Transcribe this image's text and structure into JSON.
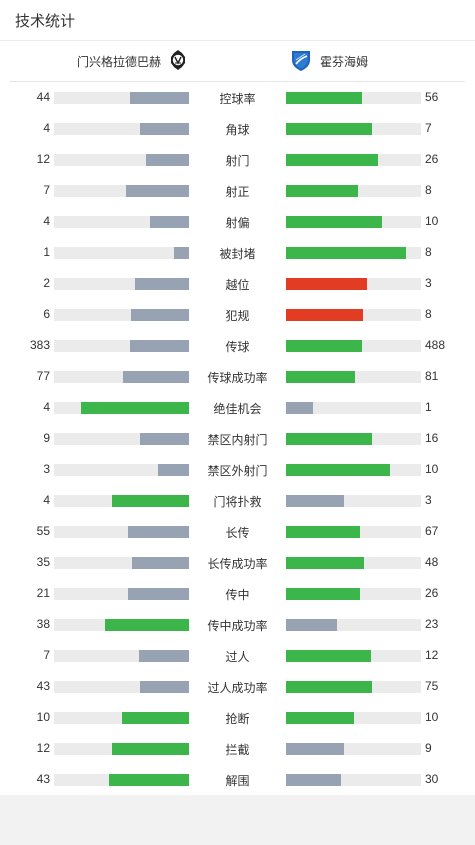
{
  "header": {
    "title": "技术统计"
  },
  "teams": {
    "home": {
      "name": "门兴格拉德巴赫",
      "logo_icon": "gladbach-crest-icon"
    },
    "away": {
      "name": "霍芬海姆",
      "logo_icon": "hoffenheim-crest-icon"
    }
  },
  "colors": {
    "leader": "#3cb54a",
    "trailer": "#97a3b3",
    "highlight": "#e23c22",
    "track": "#ebebeb"
  },
  "stats": [
    {
      "label": "控球率",
      "home": "44",
      "away": "56",
      "home_pct": 0.44,
      "away_pct": 0.56,
      "home_color": "trailer",
      "away_color": "leader"
    },
    {
      "label": "角球",
      "home": "4",
      "away": "7",
      "home_pct": 0.36,
      "away_pct": 0.64,
      "home_color": "trailer",
      "away_color": "leader"
    },
    {
      "label": "射门",
      "home": "12",
      "away": "26",
      "home_pct": 0.32,
      "away_pct": 0.68,
      "home_color": "trailer",
      "away_color": "leader"
    },
    {
      "label": "射正",
      "home": "7",
      "away": "8",
      "home_pct": 0.47,
      "away_pct": 0.53,
      "home_color": "trailer",
      "away_color": "leader"
    },
    {
      "label": "射偏",
      "home": "4",
      "away": "10",
      "home_pct": 0.29,
      "away_pct": 0.71,
      "home_color": "trailer",
      "away_color": "leader"
    },
    {
      "label": "被封堵",
      "home": "1",
      "away": "8",
      "home_pct": 0.11,
      "away_pct": 0.89,
      "home_color": "trailer",
      "away_color": "leader"
    },
    {
      "label": "越位",
      "home": "2",
      "away": "3",
      "home_pct": 0.4,
      "away_pct": 0.6,
      "home_color": "trailer",
      "away_color": "highlight"
    },
    {
      "label": "犯规",
      "home": "6",
      "away": "8",
      "home_pct": 0.43,
      "away_pct": 0.57,
      "home_color": "trailer",
      "away_color": "highlight"
    },
    {
      "label": "传球",
      "home": "383",
      "away": "488",
      "home_pct": 0.44,
      "away_pct": 0.56,
      "home_color": "trailer",
      "away_color": "leader"
    },
    {
      "label": "传球成功率",
      "home": "77",
      "away": "81",
      "home_pct": 0.49,
      "away_pct": 0.51,
      "home_color": "trailer",
      "away_color": "leader"
    },
    {
      "label": "绝佳机会",
      "home": "4",
      "away": "1",
      "home_pct": 0.8,
      "away_pct": 0.2,
      "home_color": "leader",
      "away_color": "trailer"
    },
    {
      "label": "禁区内射门",
      "home": "9",
      "away": "16",
      "home_pct": 0.36,
      "away_pct": 0.64,
      "home_color": "trailer",
      "away_color": "leader"
    },
    {
      "label": "禁区外射门",
      "home": "3",
      "away": "10",
      "home_pct": 0.23,
      "away_pct": 0.77,
      "home_color": "trailer",
      "away_color": "leader"
    },
    {
      "label": "门将扑救",
      "home": "4",
      "away": "3",
      "home_pct": 0.57,
      "away_pct": 0.43,
      "home_color": "leader",
      "away_color": "trailer"
    },
    {
      "label": "长传",
      "home": "55",
      "away": "67",
      "home_pct": 0.45,
      "away_pct": 0.55,
      "home_color": "trailer",
      "away_color": "leader"
    },
    {
      "label": "长传成功率",
      "home": "35",
      "away": "48",
      "home_pct": 0.42,
      "away_pct": 0.58,
      "home_color": "trailer",
      "away_color": "leader"
    },
    {
      "label": "传中",
      "home": "21",
      "away": "26",
      "home_pct": 0.45,
      "away_pct": 0.55,
      "home_color": "trailer",
      "away_color": "leader"
    },
    {
      "label": "传中成功率",
      "home": "38",
      "away": "23",
      "home_pct": 0.62,
      "away_pct": 0.38,
      "home_color": "leader",
      "away_color": "trailer"
    },
    {
      "label": "过人",
      "home": "7",
      "away": "12",
      "home_pct": 0.37,
      "away_pct": 0.63,
      "home_color": "trailer",
      "away_color": "leader"
    },
    {
      "label": "过人成功率",
      "home": "43",
      "away": "75",
      "home_pct": 0.36,
      "away_pct": 0.64,
      "home_color": "trailer",
      "away_color": "leader"
    },
    {
      "label": "抢断",
      "home": "10",
      "away": "10",
      "home_pct": 0.5,
      "away_pct": 0.5,
      "home_color": "leader",
      "away_color": "leader"
    },
    {
      "label": "拦截",
      "home": "12",
      "away": "9",
      "home_pct": 0.57,
      "away_pct": 0.43,
      "home_color": "leader",
      "away_color": "trailer"
    },
    {
      "label": "解围",
      "home": "43",
      "away": "30",
      "home_pct": 0.59,
      "away_pct": 0.41,
      "home_color": "leader",
      "away_color": "trailer"
    }
  ]
}
